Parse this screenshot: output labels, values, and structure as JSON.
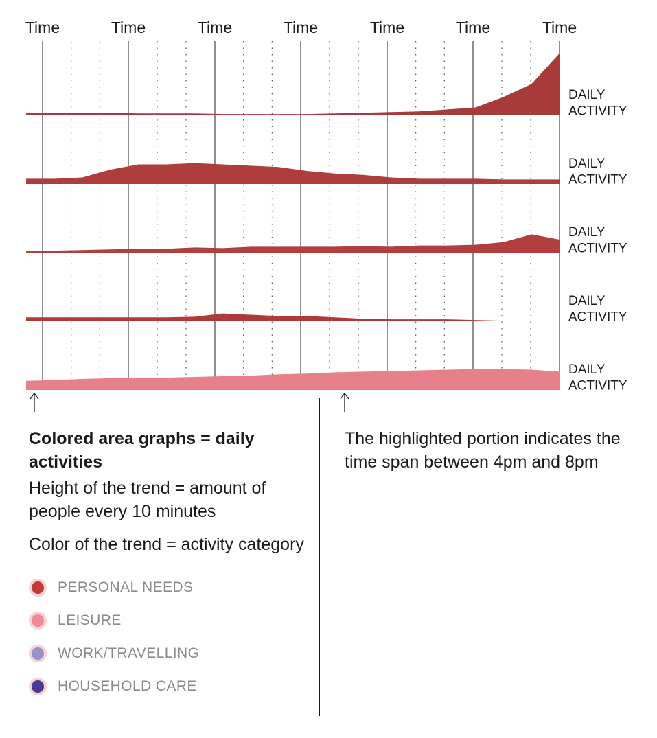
{
  "chart_data": {
    "type": "area",
    "x_tick_labels": [
      "Time",
      "Time",
      "Time",
      "Time",
      "Time",
      "Time",
      "Time"
    ],
    "x": [
      0,
      1,
      2,
      3,
      4,
      5,
      6,
      7,
      8,
      9,
      10,
      11,
      12,
      13,
      14,
      15,
      16,
      17,
      18,
      19
    ],
    "series": [
      {
        "label": "DAILY ACTIVITY",
        "color": "#a93a3a",
        "values": [
          4,
          4,
          4,
          4,
          3,
          3,
          3,
          2,
          2,
          2,
          2,
          3,
          4,
          5,
          6,
          9,
          12,
          28,
          48,
          95
        ]
      },
      {
        "label": "DAILY ACTIVITY",
        "color": "#ad3e3c",
        "values": [
          8,
          8,
          10,
          22,
          30,
          30,
          32,
          30,
          28,
          26,
          20,
          16,
          14,
          10,
          8,
          8,
          8,
          7,
          7,
          7
        ]
      },
      {
        "label": "DAILY ACTIVITY",
        "color": "#b03f3d",
        "values": [
          2,
          3,
          4,
          5,
          6,
          6,
          8,
          7,
          9,
          9,
          9,
          9,
          10,
          9,
          11,
          11,
          12,
          16,
          28,
          20
        ]
      },
      {
        "label": "DAILY ACTIVITY",
        "color": "#ad3b39",
        "values": [
          6,
          6,
          6,
          6,
          6,
          6,
          7,
          12,
          10,
          8,
          8,
          6,
          4,
          3,
          3,
          3,
          2,
          1,
          0,
          0
        ]
      },
      {
        "label": "DAILY ACTIVITY",
        "color": "#e8808c",
        "values": [
          14,
          15,
          17,
          18,
          18,
          19,
          20,
          21,
          22,
          24,
          25,
          27,
          28,
          29,
          30,
          31,
          32,
          32,
          31,
          28
        ]
      }
    ],
    "highlight": "4pm-8pm"
  },
  "legend": {
    "title": "Colored area graphs = daily activities",
    "height_text": "Height of the trend = amount of people every 10 minutes",
    "color_text": "Color of the trend = activity category",
    "categories": [
      {
        "label": "PERSONAL NEEDS",
        "color": "#c0393b"
      },
      {
        "label": "LEISURE",
        "color": "#ee8a97"
      },
      {
        "label": "WORK/TRAVELLING",
        "color": "#9a93cb"
      },
      {
        "label": "HOUSEHOLD CARE",
        "color": "#4b3a92"
      }
    ]
  },
  "highlight_note": "The highlighted portion indicates the time span between 4pm and 8pm"
}
